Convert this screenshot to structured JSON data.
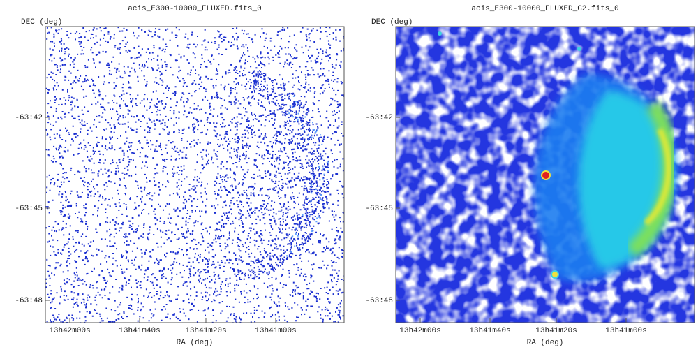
{
  "panels": [
    {
      "title": "acis_E300-10000_FLUXED.fits_0",
      "y_label": "DEC (deg)",
      "x_label": "RA (deg)",
      "y_ticks": [
        "-63:42",
        "-63:45",
        "-63:48"
      ],
      "x_ticks": [
        "13h42m00s",
        "13h41m40s",
        "13h41m20s",
        "13h41m00s"
      ]
    },
    {
      "title": "acis_E300-10000_FLUXED_G2.fits_0",
      "y_label": "DEC (deg)",
      "x_label": "RA (deg)",
      "y_ticks": [
        "-63:42",
        "-63:45",
        "-63:48"
      ],
      "x_ticks": [
        "13h42m00s",
        "13h41m40s",
        "13h41m20s",
        "13h41m00s"
      ]
    }
  ]
}
